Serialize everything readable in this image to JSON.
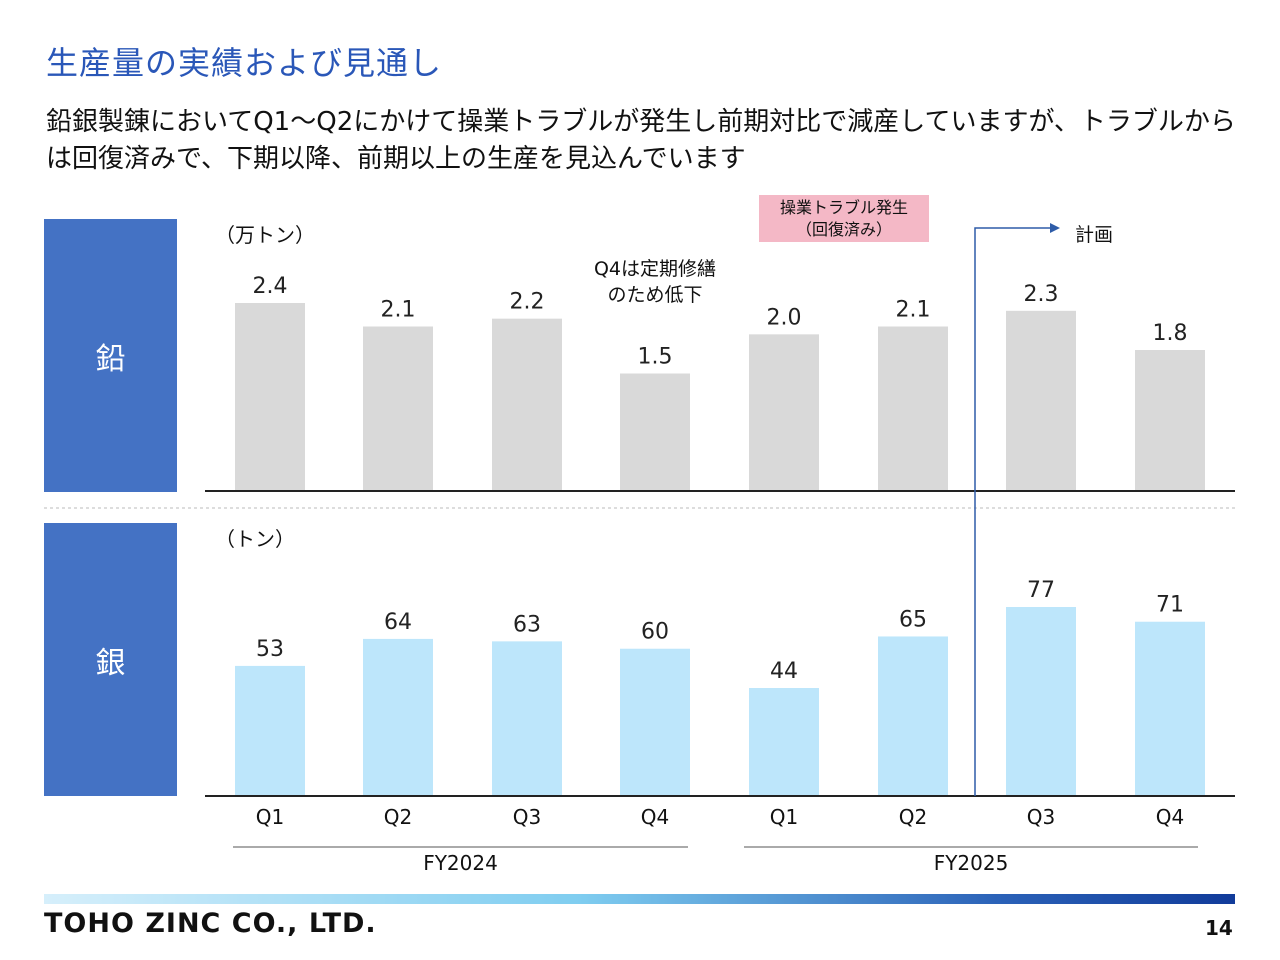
{
  "page": {
    "title": "生産量の実績および見通し",
    "subtitle": "鉛銀製錬においてQ1～Q2にかけて操業トラブルが発生し前期対比で減産していますが、トラブルからは回復済みで、下期以降、前期以上の生産を見込んでいます",
    "company": "TOHO ZINC CO., LTD.",
    "page_number": "14"
  },
  "labels": {
    "lead": "鉛",
    "silver": "銀",
    "lead_unit": "（万トン）",
    "silver_unit": "（トン）",
    "q4_note_line1": "Q4は定期修繕",
    "q4_note_line2": "のため低下",
    "trouble_line1": "操業トラブル発生",
    "trouble_line2": "（回復済み）",
    "plan": "計画"
  },
  "colors": {
    "title": "#2a57b8",
    "metal_box": "#4472c4",
    "lead_bar": "#d9d9d9",
    "silver_bar": "#bde6fb",
    "plan_arrow": "#2e5ca8",
    "trouble_box": "#f4b8c6"
  },
  "chart_data": [
    {
      "type": "bar",
      "name": "lead",
      "title": "鉛",
      "ylabel": "（万トン）",
      "categories": [
        "Q1",
        "Q2",
        "Q3",
        "Q4",
        "Q1",
        "Q2",
        "Q3",
        "Q4"
      ],
      "groups": [
        {
          "label": "FY2024",
          "count": 4
        },
        {
          "label": "FY2025",
          "count": 4
        }
      ],
      "values": [
        2.4,
        2.1,
        2.2,
        1.5,
        2.0,
        2.1,
        2.3,
        1.8
      ],
      "value_labels": [
        "2.4",
        "2.1",
        "2.2",
        "1.5",
        "2.0",
        "2.1",
        "2.3",
        "1.8"
      ],
      "ylim": [
        0,
        2.4
      ]
    },
    {
      "type": "bar",
      "name": "silver",
      "title": "銀",
      "ylabel": "（トン）",
      "categories": [
        "Q1",
        "Q2",
        "Q3",
        "Q4",
        "Q1",
        "Q2",
        "Q3",
        "Q4"
      ],
      "groups": [
        {
          "label": "FY2024",
          "count": 4
        },
        {
          "label": "FY2025",
          "count": 4
        }
      ],
      "values": [
        53,
        64,
        63,
        60,
        44,
        65,
        77,
        71
      ],
      "value_labels": [
        "53",
        "64",
        "63",
        "60",
        "44",
        "65",
        "77",
        "71"
      ],
      "ylim": [
        0,
        77
      ]
    }
  ]
}
